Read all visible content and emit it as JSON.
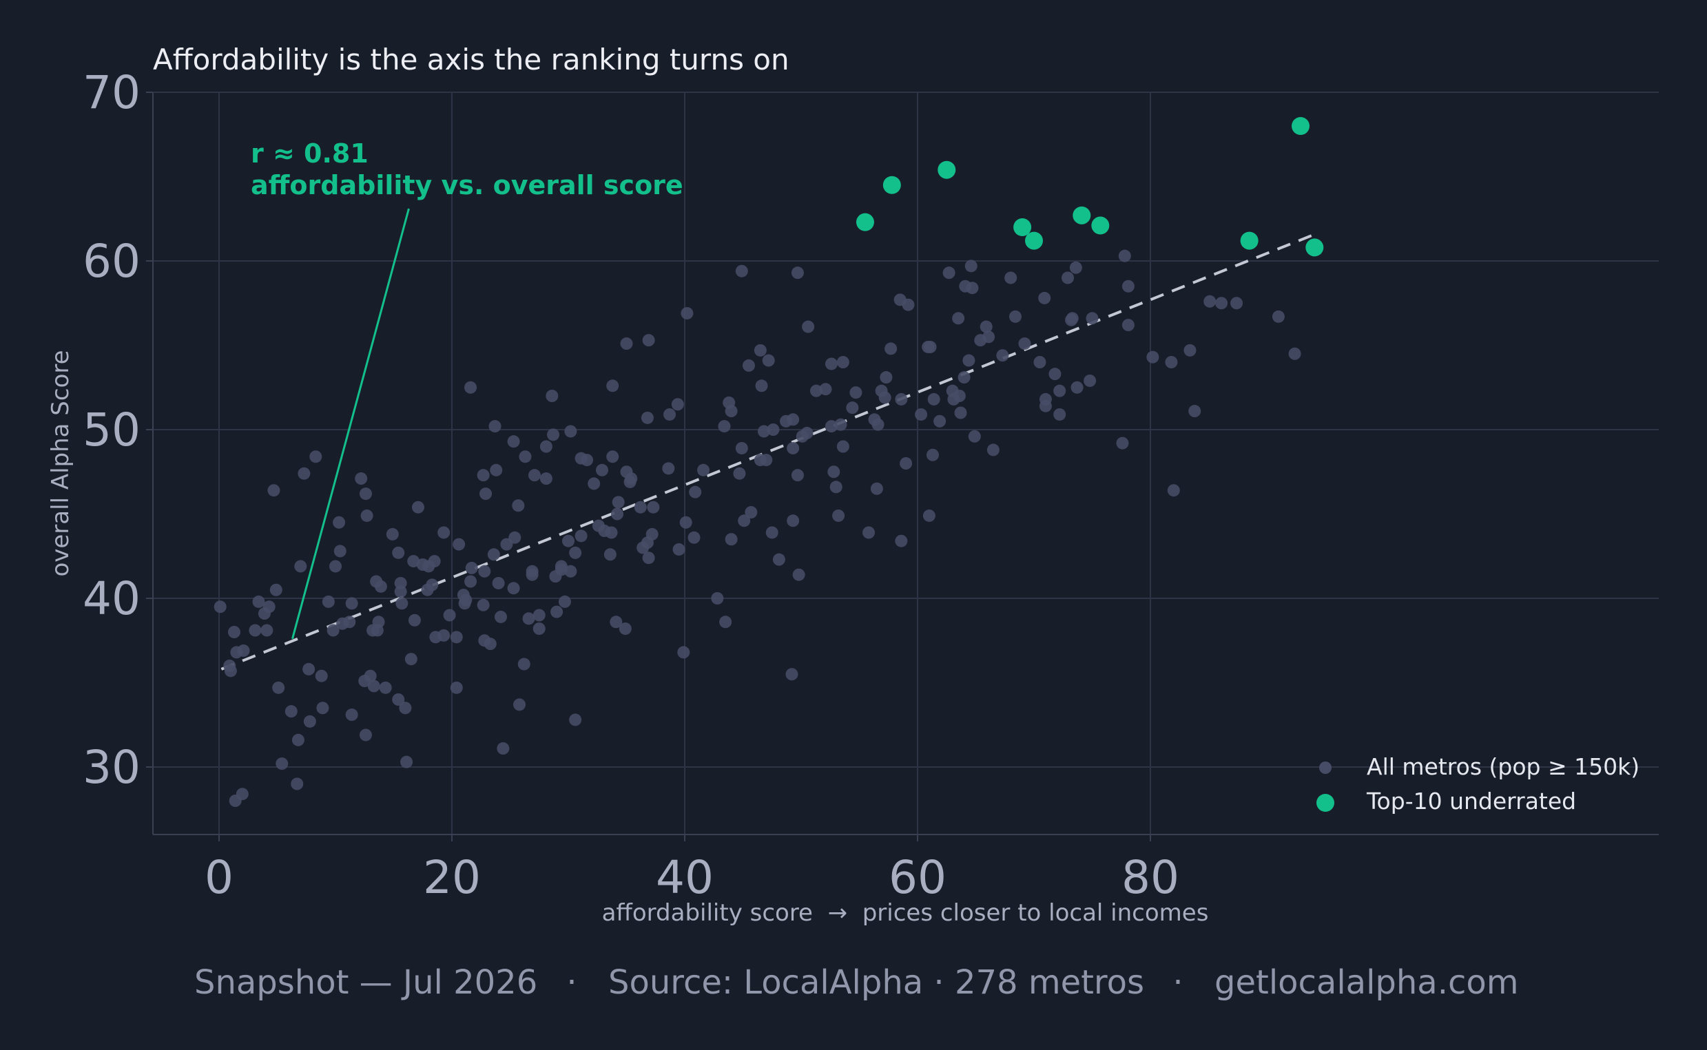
{
  "chart_data": {
    "type": "scatter",
    "title": "Affordability is the axis the ranking turns on",
    "xlabel": "affordability score  →  prices closer to local incomes",
    "ylabel": "overall Alpha Score",
    "xlim": [
      -4.5,
      99
    ],
    "ylim": [
      26,
      70
    ],
    "x_ticks": [
      "0",
      "20",
      "40",
      "60",
      "80"
    ],
    "y_ticks": [
      "30",
      "40",
      "50",
      "60",
      "70"
    ],
    "grid": true,
    "legend_position": "bottom-right",
    "colors": {
      "background": "#181d2a",
      "metros": "#474d66",
      "top10": "#13c08c",
      "trend": "#c4c8d4",
      "grid": "#2e3446"
    },
    "annotation": {
      "lines": [
        "r ≈ 0.81",
        "affordability vs. overall score"
      ],
      "arrow_from": [
        16.3,
        63.1
      ],
      "arrow_to": [
        6.3,
        37.6
      ]
    },
    "trendline": {
      "x": [
        0.2,
        94.2
      ],
      "y": [
        35.8,
        61.6
      ]
    },
    "series": [
      {
        "name": "All metros (pop ≥ 150k)",
        "points": [
          [
            0.1,
            39.5
          ],
          [
            0.9,
            36.0
          ],
          [
            1.0,
            35.7
          ],
          [
            1.3,
            38.0
          ],
          [
            1.5,
            36.8
          ],
          [
            1.4,
            28.0
          ],
          [
            2.0,
            28.4
          ],
          [
            2.1,
            36.9
          ],
          [
            3.1,
            38.1
          ],
          [
            3.4,
            39.8
          ],
          [
            3.9,
            39.1
          ],
          [
            4.1,
            38.1
          ],
          [
            4.3,
            39.5
          ],
          [
            4.7,
            46.4
          ],
          [
            4.9,
            40.5
          ],
          [
            5.1,
            34.7
          ],
          [
            5.4,
            30.2
          ],
          [
            6.2,
            33.3
          ],
          [
            6.7,
            29.0
          ],
          [
            6.8,
            31.6
          ],
          [
            7.0,
            41.9
          ],
          [
            7.3,
            47.4
          ],
          [
            7.7,
            35.8
          ],
          [
            7.8,
            32.7
          ],
          [
            8.3,
            48.4
          ],
          [
            8.8,
            35.4
          ],
          [
            8.9,
            33.5
          ],
          [
            9.4,
            39.8
          ],
          [
            9.8,
            38.1
          ],
          [
            10.0,
            41.9
          ],
          [
            10.3,
            44.5
          ],
          [
            10.4,
            42.8
          ],
          [
            10.6,
            38.5
          ],
          [
            11.2,
            38.6
          ],
          [
            11.4,
            33.1
          ],
          [
            11.4,
            39.7
          ],
          [
            12.2,
            47.1
          ],
          [
            12.5,
            35.1
          ],
          [
            12.6,
            31.9
          ],
          [
            12.6,
            46.2
          ],
          [
            12.7,
            44.9
          ],
          [
            13.0,
            35.4
          ],
          [
            13.2,
            38.1
          ],
          [
            13.3,
            34.8
          ],
          [
            13.5,
            41.0
          ],
          [
            13.6,
            38.1
          ],
          [
            13.7,
            38.6
          ],
          [
            13.9,
            40.7
          ],
          [
            14.3,
            34.7
          ],
          [
            14.9,
            43.8
          ],
          [
            15.4,
            34.0
          ],
          [
            15.4,
            42.7
          ],
          [
            15.6,
            40.9
          ],
          [
            15.6,
            40.4
          ],
          [
            15.7,
            39.7
          ],
          [
            16.0,
            33.5
          ],
          [
            16.1,
            30.3
          ],
          [
            16.5,
            36.4
          ],
          [
            16.7,
            42.2
          ],
          [
            16.8,
            38.7
          ],
          [
            17.1,
            45.4
          ],
          [
            17.5,
            42.0
          ],
          [
            17.9,
            40.5
          ],
          [
            18.0,
            41.9
          ],
          [
            18.3,
            40.8
          ],
          [
            18.5,
            42.2
          ],
          [
            18.6,
            37.7
          ],
          [
            19.3,
            37.8
          ],
          [
            19.3,
            43.9
          ],
          [
            19.8,
            39.0
          ],
          [
            20.4,
            34.7
          ],
          [
            20.4,
            37.7
          ],
          [
            20.6,
            43.2
          ],
          [
            21.0,
            40.2
          ],
          [
            21.1,
            39.7
          ],
          [
            21.2,
            39.9
          ],
          [
            21.6,
            41.0
          ],
          [
            21.6,
            52.5
          ],
          [
            21.7,
            41.8
          ],
          [
            22.7,
            39.6
          ],
          [
            22.7,
            47.3
          ],
          [
            22.8,
            37.5
          ],
          [
            22.8,
            41.6
          ],
          [
            22.9,
            46.2
          ],
          [
            23.3,
            37.3
          ],
          [
            23.6,
            42.6
          ],
          [
            23.7,
            50.2
          ],
          [
            23.8,
            47.6
          ],
          [
            24.0,
            40.9
          ],
          [
            24.2,
            38.9
          ],
          [
            24.4,
            31.1
          ],
          [
            24.7,
            43.2
          ],
          [
            25.3,
            49.3
          ],
          [
            25.3,
            40.6
          ],
          [
            25.4,
            43.6
          ],
          [
            25.7,
            45.5
          ],
          [
            25.8,
            33.7
          ],
          [
            26.2,
            36.1
          ],
          [
            26.3,
            48.4
          ],
          [
            26.6,
            38.8
          ],
          [
            26.9,
            41.4
          ],
          [
            26.9,
            41.6
          ],
          [
            27.1,
            47.3
          ],
          [
            27.5,
            38.2
          ],
          [
            27.5,
            39.0
          ],
          [
            28.1,
            47.1
          ],
          [
            28.1,
            49.0
          ],
          [
            28.6,
            52.0
          ],
          [
            28.7,
            49.7
          ],
          [
            28.9,
            41.3
          ],
          [
            29.0,
            39.2
          ],
          [
            29.4,
            41.9
          ],
          [
            29.4,
            41.7
          ],
          [
            29.7,
            39.8
          ],
          [
            30.0,
            43.4
          ],
          [
            30.2,
            41.6
          ],
          [
            30.2,
            49.9
          ],
          [
            30.6,
            32.8
          ],
          [
            30.6,
            42.7
          ],
          [
            31.1,
            48.3
          ],
          [
            31.1,
            43.7
          ],
          [
            31.6,
            48.2
          ],
          [
            32.2,
            46.8
          ],
          [
            32.6,
            44.3
          ],
          [
            32.9,
            47.6
          ],
          [
            33.1,
            44.0
          ],
          [
            33.6,
            42.6
          ],
          [
            33.7,
            43.9
          ],
          [
            33.8,
            48.4
          ],
          [
            33.8,
            52.6
          ],
          [
            34.1,
            38.6
          ],
          [
            34.2,
            45.0
          ],
          [
            34.3,
            45.7
          ],
          [
            34.9,
            38.2
          ],
          [
            35.0,
            55.1
          ],
          [
            35.0,
            47.5
          ],
          [
            35.3,
            46.9
          ],
          [
            35.4,
            47.1
          ],
          [
            36.2,
            45.4
          ],
          [
            36.4,
            43.0
          ],
          [
            36.8,
            50.7
          ],
          [
            36.8,
            43.3
          ],
          [
            36.9,
            55.3
          ],
          [
            36.9,
            42.4
          ],
          [
            37.2,
            43.8
          ],
          [
            37.3,
            45.4
          ],
          [
            38.6,
            47.7
          ],
          [
            38.7,
            50.9
          ],
          [
            39.4,
            51.5
          ],
          [
            39.5,
            42.9
          ],
          [
            39.9,
            36.8
          ],
          [
            40.1,
            44.5
          ],
          [
            40.2,
            56.9
          ],
          [
            40.8,
            43.6
          ],
          [
            40.9,
            46.3
          ],
          [
            41.6,
            47.6
          ],
          [
            42.8,
            40.0
          ],
          [
            43.4,
            50.2
          ],
          [
            43.5,
            38.6
          ],
          [
            43.8,
            51.6
          ],
          [
            44.0,
            43.5
          ],
          [
            44.0,
            51.1
          ],
          [
            44.7,
            47.4
          ],
          [
            44.9,
            59.4
          ],
          [
            44.9,
            48.9
          ],
          [
            45.1,
            44.6
          ],
          [
            45.5,
            53.8
          ],
          [
            45.7,
            45.1
          ],
          [
            46.5,
            54.7
          ],
          [
            46.5,
            48.2
          ],
          [
            46.6,
            52.6
          ],
          [
            46.8,
            49.9
          ],
          [
            47.0,
            48.2
          ],
          [
            47.2,
            54.1
          ],
          [
            47.5,
            43.9
          ],
          [
            47.6,
            50.0
          ],
          [
            48.1,
            42.3
          ],
          [
            48.7,
            50.5
          ],
          [
            49.2,
            35.5
          ],
          [
            49.3,
            50.6
          ],
          [
            49.3,
            44.6
          ],
          [
            49.3,
            48.9
          ],
          [
            49.7,
            47.3
          ],
          [
            49.7,
            59.3
          ],
          [
            49.8,
            41.4
          ],
          [
            50.1,
            49.6
          ],
          [
            50.5,
            49.8
          ],
          [
            50.6,
            56.1
          ],
          [
            51.3,
            52.3
          ],
          [
            52.1,
            52.4
          ],
          [
            52.6,
            50.2
          ],
          [
            52.6,
            53.9
          ],
          [
            52.8,
            47.5
          ],
          [
            53.0,
            46.6
          ],
          [
            53.2,
            44.9
          ],
          [
            53.4,
            50.3
          ],
          [
            53.6,
            54.0
          ],
          [
            53.6,
            49.0
          ],
          [
            54.4,
            51.3
          ],
          [
            54.7,
            52.2
          ],
          [
            55.8,
            43.9
          ],
          [
            56.3,
            50.6
          ],
          [
            56.5,
            46.5
          ],
          [
            56.6,
            50.3
          ],
          [
            56.9,
            52.3
          ],
          [
            57.2,
            51.9
          ],
          [
            57.3,
            53.1
          ],
          [
            57.7,
            54.8
          ],
          [
            58.5,
            57.7
          ],
          [
            58.6,
            51.8
          ],
          [
            58.6,
            43.4
          ],
          [
            59.0,
            48.0
          ],
          [
            59.2,
            57.4
          ],
          [
            60.3,
            50.9
          ],
          [
            60.9,
            54.9
          ],
          [
            61.0,
            44.9
          ],
          [
            61.1,
            54.9
          ],
          [
            61.3,
            48.5
          ],
          [
            61.4,
            51.8
          ],
          [
            61.9,
            50.5
          ],
          [
            62.7,
            59.3
          ],
          [
            63.0,
            52.3
          ],
          [
            63.1,
            51.8
          ],
          [
            63.5,
            56.6
          ],
          [
            63.6,
            52.0
          ],
          [
            63.7,
            51.0
          ],
          [
            64.0,
            53.1
          ],
          [
            64.1,
            58.5
          ],
          [
            64.4,
            54.1
          ],
          [
            64.6,
            59.7
          ],
          [
            64.7,
            58.4
          ],
          [
            64.9,
            49.6
          ],
          [
            65.4,
            55.3
          ],
          [
            65.9,
            56.1
          ],
          [
            66.1,
            55.5
          ],
          [
            66.5,
            48.8
          ],
          [
            67.3,
            54.4
          ],
          [
            68.0,
            59.0
          ],
          [
            68.4,
            56.7
          ],
          [
            69.2,
            55.1
          ],
          [
            70.5,
            54.0
          ],
          [
            70.9,
            57.8
          ],
          [
            71.0,
            51.8
          ],
          [
            71.0,
            51.4
          ],
          [
            71.8,
            53.3
          ],
          [
            72.2,
            52.3
          ],
          [
            72.2,
            50.9
          ],
          [
            72.9,
            59.0
          ],
          [
            73.2,
            56.5
          ],
          [
            73.3,
            56.6
          ],
          [
            73.6,
            59.6
          ],
          [
            73.7,
            52.5
          ],
          [
            74.8,
            52.9
          ],
          [
            75.0,
            56.6
          ],
          [
            77.6,
            49.2
          ],
          [
            77.8,
            60.3
          ],
          [
            78.1,
            56.2
          ],
          [
            78.1,
            58.5
          ],
          [
            80.2,
            54.3
          ],
          [
            81.8,
            54.0
          ],
          [
            82.0,
            46.4
          ],
          [
            83.4,
            54.7
          ],
          [
            83.8,
            51.1
          ],
          [
            85.1,
            57.6
          ],
          [
            86.1,
            57.5
          ],
          [
            87.4,
            57.5
          ],
          [
            91.0,
            56.7
          ],
          [
            92.4,
            54.5
          ]
        ]
      },
      {
        "name": "Top-10 underrated",
        "points": [
          [
            55.5,
            62.3
          ],
          [
            57.8,
            64.5
          ],
          [
            62.5,
            65.4
          ],
          [
            69.0,
            62.0
          ],
          [
            70.0,
            61.2
          ],
          [
            74.1,
            62.7
          ],
          [
            75.7,
            62.1
          ],
          [
            88.5,
            61.2
          ],
          [
            92.9,
            68.0
          ],
          [
            94.1,
            60.8
          ]
        ]
      }
    ]
  },
  "footer": {
    "snapshot": "Snapshot — Jul 2026",
    "separator": "·",
    "source": "Source: LocalAlpha · 278 metros",
    "site": "getlocalalpha.com"
  }
}
